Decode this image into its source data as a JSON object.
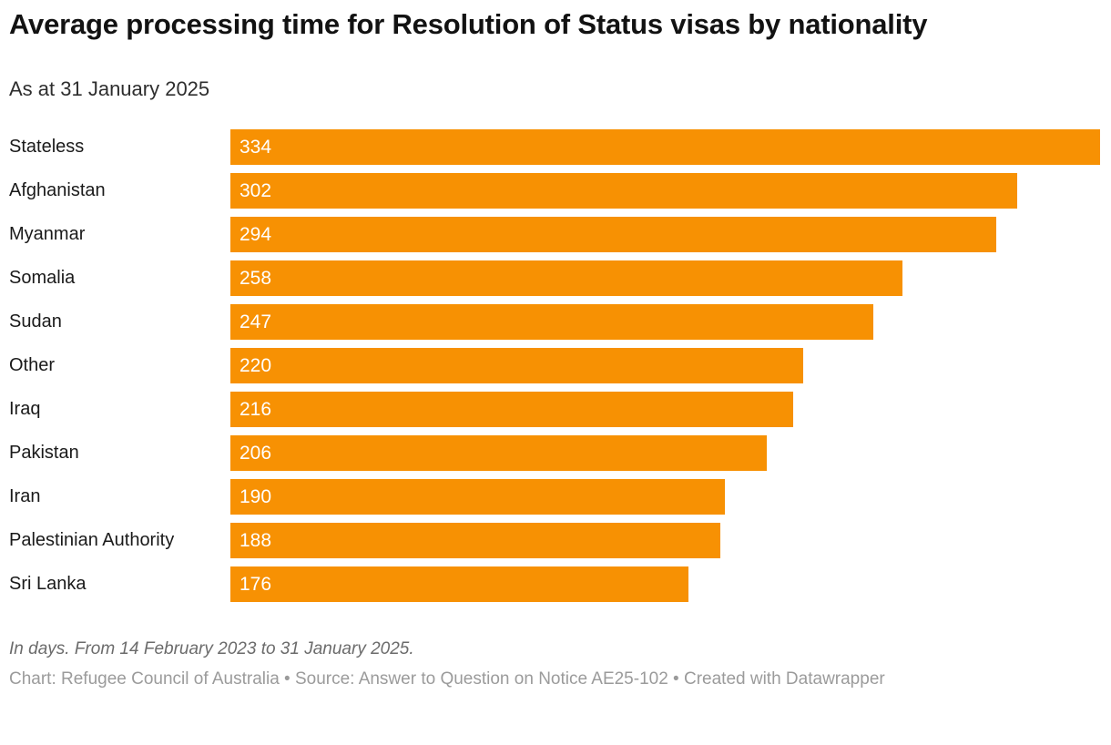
{
  "chart": {
    "title": "Average processing time for Resolution of Status visas by nationality",
    "subtitle": "As at 31 January 2025",
    "notes": "In days. From 14 February 2023 to 31 January 2025.",
    "credit": "Chart: Refugee Council of Australia • Source: Answer to Question on Notice AE25-102 • Created with Datawrapper"
  },
  "chart_data": {
    "type": "bar",
    "orientation": "horizontal",
    "title": "Average processing time for Resolution of Status visas by nationality",
    "subtitle": "As at 31 January 2025",
    "unit": "days",
    "categories": [
      "Stateless",
      "Afghanistan",
      "Myanmar",
      "Somalia",
      "Sudan",
      "Other",
      "Iraq",
      "Pakistan",
      "Iran",
      "Palestinian Authority",
      "Sri Lanka"
    ],
    "values": [
      334,
      302,
      294,
      258,
      247,
      220,
      216,
      206,
      190,
      188,
      176
    ],
    "value_labels_inside_bars": true,
    "bar_color": "#F79103",
    "value_label_color": "#ffffff",
    "xlim": [
      0,
      334
    ],
    "grid": false,
    "legend": false,
    "notes": "In days. From 14 February 2023 to 31 January 2025.",
    "credit": "Chart: Refugee Council of Australia • Source: Answer to Question on Notice AE25-102 • Created with Datawrapper"
  }
}
